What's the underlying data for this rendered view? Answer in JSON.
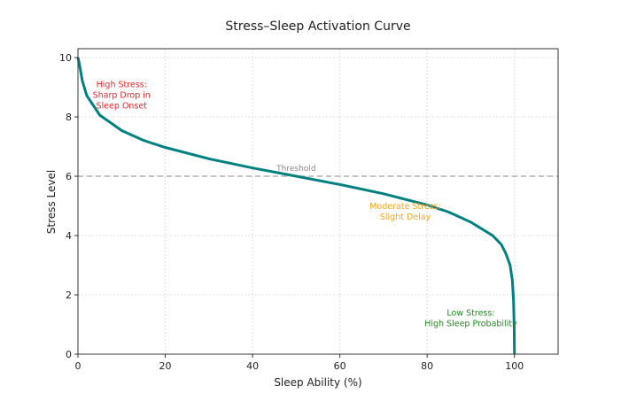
{
  "chart_data": {
    "type": "line",
    "title": "Stress–Sleep Activation Curve",
    "xlabel": "Sleep Ability (%)",
    "ylabel": "Stress Level",
    "xlim": [
      0,
      110
    ],
    "ylim": [
      0,
      10.3
    ],
    "xticks": [
      0,
      20,
      40,
      60,
      80,
      100
    ],
    "yticks": [
      0,
      2,
      4,
      6,
      8,
      10
    ],
    "grid": true,
    "series": [
      {
        "color": "#008080",
        "x": [
          0,
          0.3,
          1,
          2,
          5,
          10,
          15,
          20,
          30,
          40,
          50,
          60,
          70,
          80,
          85,
          90,
          95,
          97,
          98,
          99,
          99.5,
          99.8,
          99.95,
          100
        ],
        "y": [
          10,
          9.8,
          9.22,
          8.72,
          8.06,
          7.54,
          7.21,
          6.97,
          6.59,
          6.28,
          6.0,
          5.72,
          5.41,
          5.03,
          4.79,
          4.45,
          4.0,
          3.7,
          3.4,
          3.0,
          2.5,
          1.8,
          0.8,
          0
        ]
      }
    ],
    "threshold": {
      "y": 6,
      "label": "Threshold",
      "color": "#b0b0b0"
    },
    "annotations": [
      {
        "text": [
          "High Stress:",
          "Sharp Drop in",
          "Sleep Onset"
        ],
        "x": 10,
        "y": 9.0,
        "color": "#e8262b"
      },
      {
        "text": [
          "Moderate Stress:",
          "Slight Delay"
        ],
        "x": 75,
        "y": 4.9,
        "color": "#f5a623"
      },
      {
        "text": [
          "Low Stress:",
          "High Sleep Probability"
        ],
        "x": 90,
        "y": 1.3,
        "color": "#1e8c1e"
      }
    ]
  }
}
